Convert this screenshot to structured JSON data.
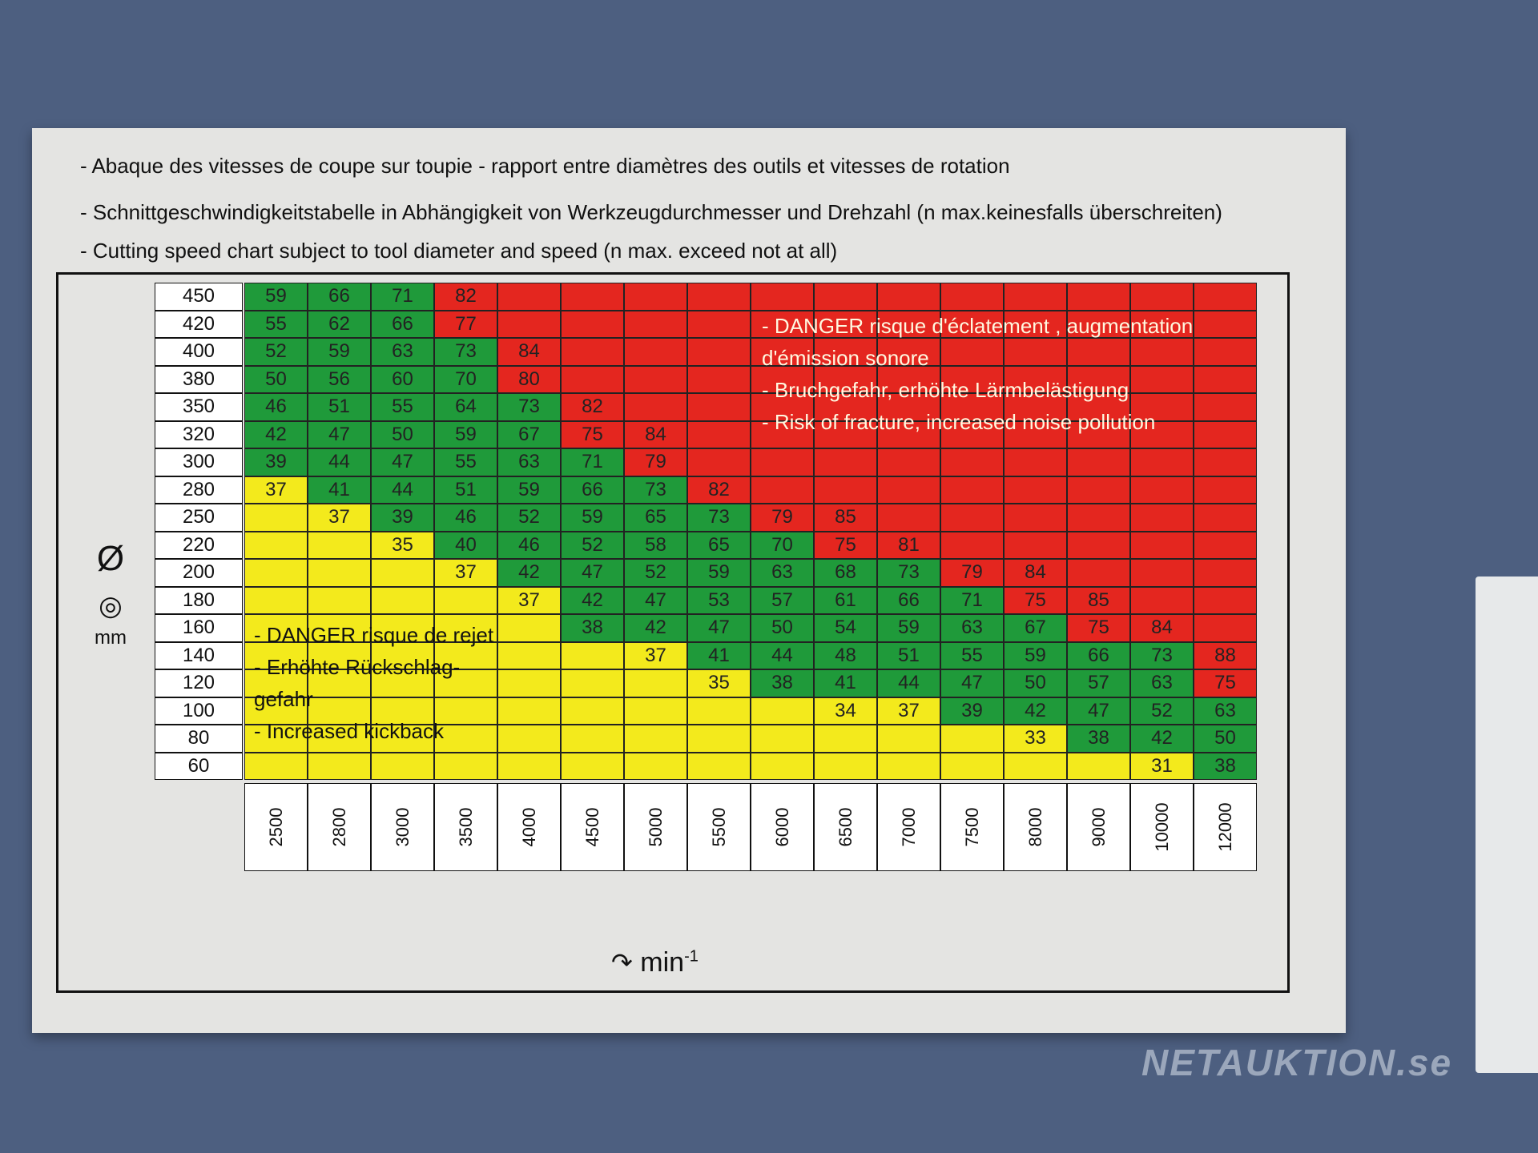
{
  "titles": [
    "- Abaque des vitesses  de coupe  sur toupie  -  rapport  entre diamètres  des outils et vitesses de rotation",
    "- Schnittgeschwindigkeitstabelle in Abhängigkeit von Werkzeugdurchmesser und Drehzahl (n max.keinesfalls überschreiten)",
    "- Cutting speed chart subject to tool diameter and speed (n max. exceed not at all)"
  ],
  "table": {
    "diameters": [
      450,
      420,
      400,
      380,
      350,
      320,
      300,
      280,
      250,
      220,
      200,
      180,
      160,
      140,
      120,
      100,
      80,
      60
    ],
    "speeds": [
      "2500",
      "2800",
      "3000",
      "3500",
      "4000",
      "4500",
      "5000",
      "5500",
      "6000",
      "6500",
      "7000",
      "7500",
      "8000",
      "9000",
      "10000",
      "12000"
    ],
    "rows": [
      [
        [
          "59",
          "g"
        ],
        [
          "66",
          "g"
        ],
        [
          "71",
          "g"
        ],
        [
          "82",
          "r"
        ],
        [
          "",
          "r"
        ],
        [
          "",
          "r"
        ],
        [
          "",
          "r"
        ],
        [
          "",
          "r"
        ],
        [
          "",
          "r"
        ],
        [
          "",
          "r"
        ],
        [
          "",
          "r"
        ],
        [
          "",
          "r"
        ],
        [
          "",
          "r"
        ],
        [
          "",
          "r"
        ],
        [
          "",
          "r"
        ],
        [
          "",
          "r"
        ]
      ],
      [
        [
          "55",
          "g"
        ],
        [
          "62",
          "g"
        ],
        [
          "66",
          "g"
        ],
        [
          "77",
          "r"
        ],
        [
          "",
          "r"
        ],
        [
          "",
          "r"
        ],
        [
          "",
          "r"
        ],
        [
          "",
          "r"
        ],
        [
          "",
          "r"
        ],
        [
          "",
          "r"
        ],
        [
          "",
          "r"
        ],
        [
          "",
          "r"
        ],
        [
          "",
          "r"
        ],
        [
          "",
          "r"
        ],
        [
          "",
          "r"
        ],
        [
          "",
          "r"
        ]
      ],
      [
        [
          "52",
          "g"
        ],
        [
          "59",
          "g"
        ],
        [
          "63",
          "g"
        ],
        [
          "73",
          "g"
        ],
        [
          "84",
          "r"
        ],
        [
          "",
          "r"
        ],
        [
          "",
          "r"
        ],
        [
          "",
          "r"
        ],
        [
          "",
          "r"
        ],
        [
          "",
          "r"
        ],
        [
          "",
          "r"
        ],
        [
          "",
          "r"
        ],
        [
          "",
          "r"
        ],
        [
          "",
          "r"
        ],
        [
          "",
          "r"
        ],
        [
          "",
          "r"
        ]
      ],
      [
        [
          "50",
          "g"
        ],
        [
          "56",
          "g"
        ],
        [
          "60",
          "g"
        ],
        [
          "70",
          "g"
        ],
        [
          "80",
          "r"
        ],
        [
          "",
          "r"
        ],
        [
          "",
          "r"
        ],
        [
          "",
          "r"
        ],
        [
          "",
          "r"
        ],
        [
          "",
          "r"
        ],
        [
          "",
          "r"
        ],
        [
          "",
          "r"
        ],
        [
          "",
          "r"
        ],
        [
          "",
          "r"
        ],
        [
          "",
          "r"
        ],
        [
          "",
          "r"
        ]
      ],
      [
        [
          "46",
          "g"
        ],
        [
          "51",
          "g"
        ],
        [
          "55",
          "g"
        ],
        [
          "64",
          "g"
        ],
        [
          "73",
          "g"
        ],
        [
          "82",
          "r"
        ],
        [
          "",
          "r"
        ],
        [
          "",
          "r"
        ],
        [
          "",
          "r"
        ],
        [
          "",
          "r"
        ],
        [
          "",
          "r"
        ],
        [
          "",
          "r"
        ],
        [
          "",
          "r"
        ],
        [
          "",
          "r"
        ],
        [
          "",
          "r"
        ],
        [
          "",
          "r"
        ]
      ],
      [
        [
          "42",
          "g"
        ],
        [
          "47",
          "g"
        ],
        [
          "50",
          "g"
        ],
        [
          "59",
          "g"
        ],
        [
          "67",
          "g"
        ],
        [
          "75",
          "r"
        ],
        [
          "84",
          "r"
        ],
        [
          "",
          "r"
        ],
        [
          "",
          "r"
        ],
        [
          "",
          "r"
        ],
        [
          "",
          "r"
        ],
        [
          "",
          "r"
        ],
        [
          "",
          "r"
        ],
        [
          "",
          "r"
        ],
        [
          "",
          "r"
        ],
        [
          "",
          "r"
        ]
      ],
      [
        [
          "39",
          "g"
        ],
        [
          "44",
          "g"
        ],
        [
          "47",
          "g"
        ],
        [
          "55",
          "g"
        ],
        [
          "63",
          "g"
        ],
        [
          "71",
          "g"
        ],
        [
          "79",
          "r"
        ],
        [
          "",
          "r"
        ],
        [
          "",
          "r"
        ],
        [
          "",
          "r"
        ],
        [
          "",
          "r"
        ],
        [
          "",
          "r"
        ],
        [
          "",
          "r"
        ],
        [
          "",
          "r"
        ],
        [
          "",
          "r"
        ],
        [
          "",
          "r"
        ]
      ],
      [
        [
          "37",
          "y"
        ],
        [
          "41",
          "g"
        ],
        [
          "44",
          "g"
        ],
        [
          "51",
          "g"
        ],
        [
          "59",
          "g"
        ],
        [
          "66",
          "g"
        ],
        [
          "73",
          "g"
        ],
        [
          "82",
          "r"
        ],
        [
          "",
          "r"
        ],
        [
          "",
          "r"
        ],
        [
          "",
          "r"
        ],
        [
          "",
          "r"
        ],
        [
          "",
          "r"
        ],
        [
          "",
          "r"
        ],
        [
          "",
          "r"
        ],
        [
          "",
          "r"
        ]
      ],
      [
        [
          "",
          "y"
        ],
        [
          "37",
          "y"
        ],
        [
          "39",
          "g"
        ],
        [
          "46",
          "g"
        ],
        [
          "52",
          "g"
        ],
        [
          "59",
          "g"
        ],
        [
          "65",
          "g"
        ],
        [
          "73",
          "g"
        ],
        [
          "79",
          "r"
        ],
        [
          "85",
          "r"
        ],
        [
          "",
          "r"
        ],
        [
          "",
          "r"
        ],
        [
          "",
          "r"
        ],
        [
          "",
          "r"
        ],
        [
          "",
          "r"
        ],
        [
          "",
          "r"
        ]
      ],
      [
        [
          "",
          "y"
        ],
        [
          "",
          "y"
        ],
        [
          "35",
          "y"
        ],
        [
          "40",
          "g"
        ],
        [
          "46",
          "g"
        ],
        [
          "52",
          "g"
        ],
        [
          "58",
          "g"
        ],
        [
          "65",
          "g"
        ],
        [
          "70",
          "g"
        ],
        [
          "75",
          "r"
        ],
        [
          "81",
          "r"
        ],
        [
          "",
          "r"
        ],
        [
          "",
          "r"
        ],
        [
          "",
          "r"
        ],
        [
          "",
          "r"
        ],
        [
          "",
          "r"
        ]
      ],
      [
        [
          "",
          "y"
        ],
        [
          "",
          "y"
        ],
        [
          "",
          "y"
        ],
        [
          "37",
          "y"
        ],
        [
          "42",
          "g"
        ],
        [
          "47",
          "g"
        ],
        [
          "52",
          "g"
        ],
        [
          "59",
          "g"
        ],
        [
          "63",
          "g"
        ],
        [
          "68",
          "g"
        ],
        [
          "73",
          "g"
        ],
        [
          "79",
          "r"
        ],
        [
          "84",
          "r"
        ],
        [
          "",
          "r"
        ],
        [
          "",
          "r"
        ],
        [
          "",
          "r"
        ]
      ],
      [
        [
          "",
          "y"
        ],
        [
          "",
          "y"
        ],
        [
          "",
          "y"
        ],
        [
          "",
          "y"
        ],
        [
          "37",
          "y"
        ],
        [
          "42",
          "g"
        ],
        [
          "47",
          "g"
        ],
        [
          "53",
          "g"
        ],
        [
          "57",
          "g"
        ],
        [
          "61",
          "g"
        ],
        [
          "66",
          "g"
        ],
        [
          "71",
          "g"
        ],
        [
          "75",
          "r"
        ],
        [
          "85",
          "r"
        ],
        [
          "",
          "r"
        ],
        [
          "",
          "r"
        ]
      ],
      [
        [
          "",
          "y"
        ],
        [
          "",
          "y"
        ],
        [
          "",
          "y"
        ],
        [
          "",
          "y"
        ],
        [
          "",
          "y"
        ],
        [
          "38",
          "g"
        ],
        [
          "42",
          "g"
        ],
        [
          "47",
          "g"
        ],
        [
          "50",
          "g"
        ],
        [
          "54",
          "g"
        ],
        [
          "59",
          "g"
        ],
        [
          "63",
          "g"
        ],
        [
          "67",
          "g"
        ],
        [
          "75",
          "r"
        ],
        [
          "84",
          "r"
        ],
        [
          "",
          "r"
        ]
      ],
      [
        [
          "",
          "y"
        ],
        [
          "",
          "y"
        ],
        [
          "",
          "y"
        ],
        [
          "",
          "y"
        ],
        [
          "",
          "y"
        ],
        [
          "",
          "y"
        ],
        [
          "37",
          "y"
        ],
        [
          "41",
          "g"
        ],
        [
          "44",
          "g"
        ],
        [
          "48",
          "g"
        ],
        [
          "51",
          "g"
        ],
        [
          "55",
          "g"
        ],
        [
          "59",
          "g"
        ],
        [
          "66",
          "g"
        ],
        [
          "73",
          "g"
        ],
        [
          "88",
          "r"
        ]
      ],
      [
        [
          "",
          "y"
        ],
        [
          "",
          "y"
        ],
        [
          "",
          "y"
        ],
        [
          "",
          "y"
        ],
        [
          "",
          "y"
        ],
        [
          "",
          "y"
        ],
        [
          "",
          "y"
        ],
        [
          "35",
          "y"
        ],
        [
          "38",
          "g"
        ],
        [
          "41",
          "g"
        ],
        [
          "44",
          "g"
        ],
        [
          "47",
          "g"
        ],
        [
          "50",
          "g"
        ],
        [
          "57",
          "g"
        ],
        [
          "63",
          "g"
        ],
        [
          "75",
          "r"
        ]
      ],
      [
        [
          "",
          "y"
        ],
        [
          "",
          "y"
        ],
        [
          "",
          "y"
        ],
        [
          "",
          "y"
        ],
        [
          "",
          "y"
        ],
        [
          "",
          "y"
        ],
        [
          "",
          "y"
        ],
        [
          "",
          "y"
        ],
        [
          "",
          "y"
        ],
        [
          "34",
          "y"
        ],
        [
          "37",
          "y"
        ],
        [
          "39",
          "g"
        ],
        [
          "42",
          "g"
        ],
        [
          "47",
          "g"
        ],
        [
          "52",
          "g"
        ],
        [
          "63",
          "g"
        ]
      ],
      [
        [
          "",
          "y"
        ],
        [
          "",
          "y"
        ],
        [
          "",
          "y"
        ],
        [
          "",
          "y"
        ],
        [
          "",
          "y"
        ],
        [
          "",
          "y"
        ],
        [
          "",
          "y"
        ],
        [
          "",
          "y"
        ],
        [
          "",
          "y"
        ],
        [
          "",
          "y"
        ],
        [
          "",
          "y"
        ],
        [
          "",
          "y"
        ],
        [
          "33",
          "y"
        ],
        [
          "38",
          "g"
        ],
        [
          "42",
          "g"
        ],
        [
          "50",
          "g"
        ]
      ],
      [
        [
          "",
          "y"
        ],
        [
          "",
          "y"
        ],
        [
          "",
          "y"
        ],
        [
          "",
          "y"
        ],
        [
          "",
          "y"
        ],
        [
          "",
          "y"
        ],
        [
          "",
          "y"
        ],
        [
          "",
          "y"
        ],
        [
          "",
          "y"
        ],
        [
          "",
          "y"
        ],
        [
          "",
          "y"
        ],
        [
          "",
          "y"
        ],
        [
          "",
          "y"
        ],
        [
          "",
          "y"
        ],
        [
          "31",
          "y"
        ],
        [
          "38",
          "g"
        ]
      ]
    ]
  },
  "danger_fracture": [
    "- DANGER risque d'éclatement , augmentation",
    "   d'émission sonore",
    "- Bruchgefahr,  erhöhte   Lärmbelästigung",
    "- Risk of fracture, increased noise pollution"
  ],
  "danger_kickback": [
    "- DANGER risque  de rejet",
    "- Erhöhte Rückschlag-",
    "   gefahr",
    "- Increased kickback"
  ],
  "axis": {
    "y_symbol": "Ø",
    "y_unit": "mm",
    "x_unit": "min",
    "x_unit_exp": "-1"
  },
  "watermark": "NETAUKTION.se",
  "colors": {
    "green": "#1f9a3a",
    "red": "#e4261f",
    "yellow": "#f3ea1c"
  }
}
